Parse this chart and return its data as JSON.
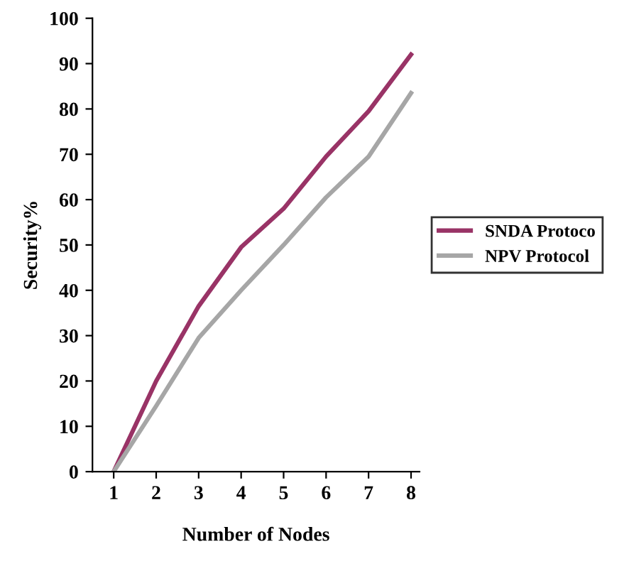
{
  "chart_data": {
    "type": "line",
    "xlabel": "Number of Nodes",
    "ylabel": "Security%",
    "x": [
      1,
      2,
      3,
      4,
      5,
      6,
      7,
      8
    ],
    "series": [
      {
        "name": "SNDA Protoco",
        "color": "#993366",
        "values": [
          0,
          20,
          36.5,
          49.5,
          58,
          69.5,
          79.5,
          92
        ]
      },
      {
        "name": "NPV Protocol",
        "color": "#a6a6a6",
        "values": [
          0,
          14.5,
          29.5,
          40,
          50,
          60.5,
          69.5,
          83.5
        ]
      }
    ],
    "xlim": [
      0.5,
      8.2
    ],
    "xticks": [
      1,
      2,
      3,
      4,
      5,
      6,
      7,
      8
    ],
    "ylim": [
      0,
      100
    ],
    "yticks": [
      0,
      10,
      20,
      30,
      40,
      50,
      60,
      70,
      80,
      90,
      100
    ],
    "grid": false,
    "legend": "right",
    "marker": "none",
    "line_style": "solid"
  }
}
